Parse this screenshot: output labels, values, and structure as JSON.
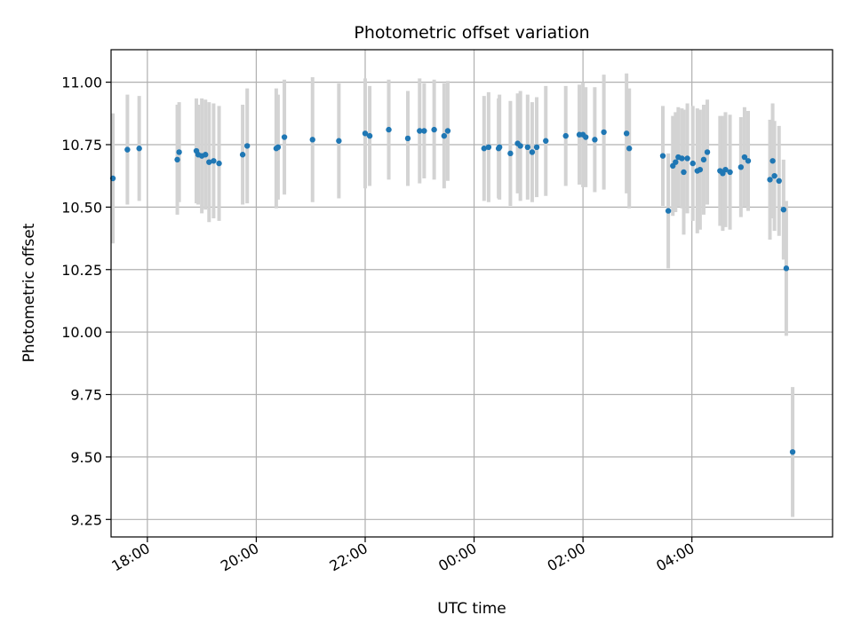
{
  "chart_data": {
    "type": "scatter",
    "title": "Photometric offset variation",
    "xlabel": "UTC time",
    "ylabel": "Photometric offset",
    "x_unit": "UTC time of night (points after midnight are on the following day)",
    "xlim": [
      "17:20",
      "06:35"
    ],
    "ylim": [
      9.18,
      11.13
    ],
    "x_ticks": [
      "18:00",
      "20:00",
      "22:00",
      "00:00",
      "02:00",
      "04:00"
    ],
    "y_ticks": [
      "9.25",
      "9.50",
      "9.75",
      "10.00",
      "10.25",
      "10.50",
      "10.75",
      "11.00"
    ],
    "y_tick_values": [
      9.25,
      9.5,
      9.75,
      10.0,
      10.25,
      10.5,
      10.75,
      11.0
    ],
    "grid": true,
    "colors": {
      "point": "#1f77b4",
      "errorbar": "#d3d3d3",
      "grid": "#b0b0b0"
    },
    "series": [
      {
        "points": [
          [
            "17:22",
            10.615,
            0.26
          ],
          [
            "17:38",
            10.73,
            0.22
          ],
          [
            "17:51",
            10.735,
            0.21
          ],
          [
            "18:33",
            10.69,
            0.22
          ],
          [
            "18:35",
            10.72,
            0.2
          ],
          [
            "18:54",
            10.725,
            0.21
          ],
          [
            "18:56",
            10.71,
            0.2
          ],
          [
            "19:00",
            10.705,
            0.23
          ],
          [
            "19:04",
            10.71,
            0.22
          ],
          [
            "19:08",
            10.68,
            0.24
          ],
          [
            "19:13",
            10.685,
            0.23
          ],
          [
            "19:19",
            10.675,
            0.23
          ],
          [
            "19:45",
            10.71,
            0.2
          ],
          [
            "19:50",
            10.745,
            0.23
          ],
          [
            "20:22",
            10.735,
            0.24
          ],
          [
            "20:24",
            10.74,
            0.21
          ],
          [
            "20:31",
            10.78,
            0.23
          ],
          [
            "21:02",
            10.77,
            0.25
          ],
          [
            "21:31",
            10.765,
            0.23
          ],
          [
            "22:00",
            10.795,
            0.22
          ],
          [
            "22:05",
            10.785,
            0.2
          ],
          [
            "22:26",
            10.81,
            0.2
          ],
          [
            "22:47",
            10.775,
            0.19
          ],
          [
            "23:00",
            10.805,
            0.21
          ],
          [
            "23:05",
            10.805,
            0.19
          ],
          [
            "23:16",
            10.81,
            0.2
          ],
          [
            "23:27",
            10.785,
            0.21
          ],
          [
            "23:31",
            10.805,
            0.2
          ],
          [
            "00:11",
            10.735,
            0.21
          ],
          [
            "00:16",
            10.74,
            0.22
          ],
          [
            "00:27",
            10.735,
            0.2
          ],
          [
            "00:28",
            10.74,
            0.21
          ],
          [
            "00:40",
            10.715,
            0.21
          ],
          [
            "00:48",
            10.755,
            0.2
          ],
          [
            "00:51",
            10.745,
            0.22
          ],
          [
            "00:59",
            10.74,
            0.21
          ],
          [
            "01:04",
            10.72,
            0.2
          ],
          [
            "01:09",
            10.74,
            0.2
          ],
          [
            "01:19",
            10.765,
            0.22
          ],
          [
            "01:41",
            10.785,
            0.2
          ],
          [
            "01:56",
            10.79,
            0.2
          ],
          [
            "02:00",
            10.79,
            0.21
          ],
          [
            "02:03",
            10.78,
            0.2
          ],
          [
            "02:13",
            10.77,
            0.21
          ],
          [
            "02:23",
            10.8,
            0.23
          ],
          [
            "02:48",
            10.795,
            0.24
          ],
          [
            "02:51",
            10.735,
            0.24
          ],
          [
            "03:28",
            10.705,
            0.2
          ],
          [
            "03:34",
            10.485,
            0.23
          ],
          [
            "03:39",
            10.665,
            0.2
          ],
          [
            "03:42",
            10.68,
            0.2
          ],
          [
            "03:45",
            10.7,
            0.2
          ],
          [
            "03:49",
            10.695,
            0.2
          ],
          [
            "03:51",
            10.64,
            0.25
          ],
          [
            "03:55",
            10.695,
            0.22
          ],
          [
            "04:01",
            10.675,
            0.23
          ],
          [
            "04:06",
            10.645,
            0.25
          ],
          [
            "04:09",
            10.65,
            0.24
          ],
          [
            "04:13",
            10.69,
            0.22
          ],
          [
            "04:17",
            10.72,
            0.21
          ],
          [
            "04:31",
            10.645,
            0.22
          ],
          [
            "04:34",
            10.635,
            0.23
          ],
          [
            "04:37",
            10.65,
            0.23
          ],
          [
            "04:42",
            10.64,
            0.23
          ],
          [
            "04:54",
            10.66,
            0.2
          ],
          [
            "04:58",
            10.7,
            0.2
          ],
          [
            "05:02",
            10.685,
            0.2
          ],
          [
            "05:26",
            10.61,
            0.24
          ],
          [
            "05:29",
            10.685,
            0.23
          ],
          [
            "05:31",
            10.625,
            0.22
          ],
          [
            "05:36",
            10.605,
            0.22
          ],
          [
            "05:41",
            10.49,
            0.2
          ],
          [
            "05:44",
            10.255,
            0.27
          ],
          [
            "05:51",
            9.52,
            0.26
          ]
        ]
      }
    ]
  }
}
